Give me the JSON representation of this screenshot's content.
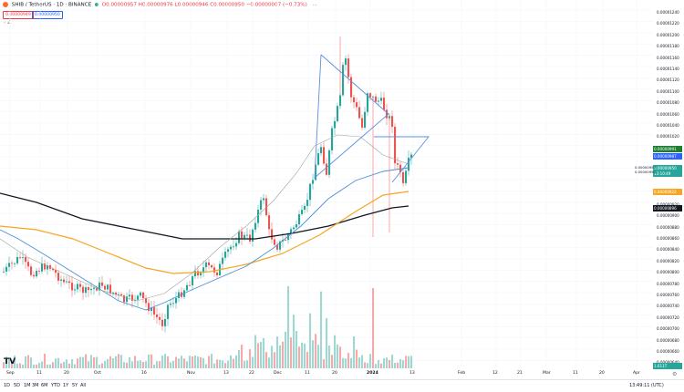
{
  "header": {
    "symbol": "SHIB / TetherUS · 1D · BINANCE",
    "ohlc": "O0.00000957 H0.00000976 L0.00000946 C0.00000950 −0.00000007 (−0.73%)",
    "more": "···",
    "sell_price": "0.00000949",
    "buy_price": "0.00000950",
    "collapse": "‹ ∠"
  },
  "price_axis": {
    "ticks": [
      "0.00001240",
      "0.00001220",
      "0.00001200",
      "0.00001180",
      "0.00001160",
      "0.00001140",
      "0.00001120",
      "0.00001100",
      "0.00001080",
      "0.00001060",
      "0.00001040",
      "0.00001020",
      "0.00000940",
      "0.00000920",
      "0.00000900",
      "0.00000880",
      "0.00000860",
      "0.00000840",
      "0.00000820",
      "0.00000800",
      "0.00000780",
      "0.00000760",
      "0.00000740",
      "0.00000720",
      "0.00000700",
      "0.00000680",
      "0.00000660",
      "0.00000640",
      "0.00000620"
    ],
    "tags": [
      {
        "label": "0.00000991",
        "color": "#1e7e34"
      },
      {
        "label": "0.00000987",
        "color": "#2962ff"
      },
      {
        "label": "0.00000950",
        "color": "#26a69a"
      },
      {
        "label": "13:10:49",
        "color": "#26a69a"
      },
      {
        "label": "0.00000922",
        "color": "#f5a623"
      },
      {
        "label": "0.00000896",
        "color": "#131722"
      },
      {
        "label": "1.611T",
        "color": "#26a69a"
      }
    ],
    "left_tag": "0.00000957",
    "left_tag2": "0.00000950"
  },
  "time_axis": [
    "Sep",
    "11",
    "20",
    "Oct",
    "16",
    "Nov",
    "13",
    "22",
    "Dec",
    "11",
    "20",
    "2024",
    "13",
    "Feb",
    "12",
    "21",
    "Mar",
    "11",
    "20",
    "Apr"
  ],
  "bottom": {
    "timeframes": [
      "1D",
      "5D",
      "1M",
      "3M",
      "6M",
      "YTD",
      "1Y",
      "5Y",
      "All"
    ],
    "clock": "13:49:11 (UTC)"
  },
  "colors": {
    "up": "#26a69a",
    "down": "#ef5350",
    "ma_fast": "#4c91d6",
    "ma_gray": "#9aa59a",
    "ma_orange": "#f5a623",
    "ma_black": "#131722",
    "pattern": "#5b8fe0"
  },
  "chart_data": {
    "type": "candlestick",
    "symbol": "SHIB / TetherUS",
    "interval": "1D",
    "ylim": [
      6.2e-06,
      1.24e-05
    ],
    "x": [
      "Sep",
      "11",
      "20",
      "Oct",
      "16",
      "Nov",
      "13",
      "22",
      "Dec",
      "11",
      "20",
      "2024",
      "13",
      "Feb",
      "12",
      "21",
      "Mar",
      "11",
      "20",
      "Apr"
    ],
    "close_approx": [
      7.2e-06,
      7.8e-06,
      7.1e-06,
      7e-06,
      7.4e-06,
      8.2e-06,
      8.5e-06,
      9.4e-06,
      8.9e-06,
      1.2e-05,
      1.1e-05,
      1.03e-05,
      9.5e-06
    ]
  }
}
